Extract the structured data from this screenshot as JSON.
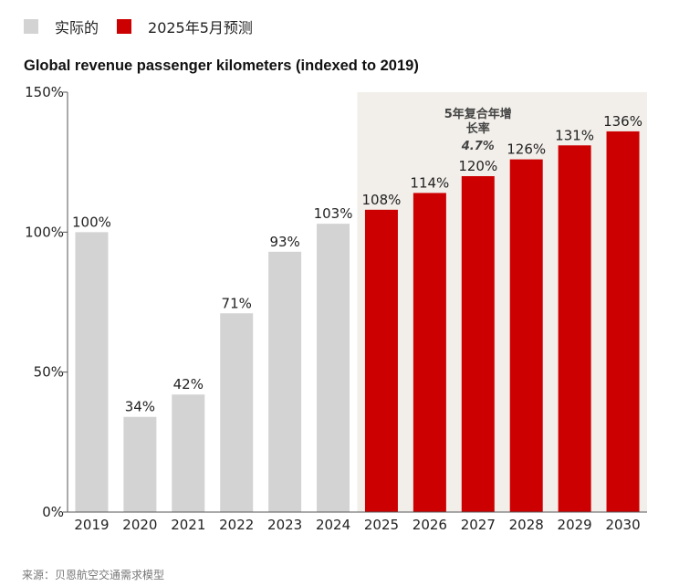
{
  "legend": {
    "actual_label": "实际的",
    "forecast_label": "2025年5月预测",
    "actual_color": "#d3d3d3",
    "forecast_color": "#cc0000"
  },
  "source": "来源：贝恩航空交通需求模型",
  "chart_data": {
    "type": "bar",
    "title": "Global revenue passenger kilometers (indexed to 2019)",
    "categories": [
      "2019",
      "2020",
      "2021",
      "2022",
      "2023",
      "2024",
      "2025",
      "2026",
      "2027",
      "2028",
      "2029",
      "2030"
    ],
    "values": [
      100,
      34,
      42,
      71,
      93,
      103,
      108,
      114,
      120,
      126,
      131,
      136
    ],
    "value_labels": [
      "100%",
      "34%",
      "42%",
      "71%",
      "93%",
      "103%",
      "108%",
      "114%",
      "120%",
      "126%",
      "131%",
      "136%"
    ],
    "series_status": [
      "actual",
      "actual",
      "actual",
      "actual",
      "actual",
      "actual",
      "forecast",
      "forecast",
      "forecast",
      "forecast",
      "forecast",
      "forecast"
    ],
    "ylim": [
      0,
      150
    ],
    "yticks": [
      0,
      50,
      100,
      150
    ],
    "ytick_labels": [
      "0%",
      "50%",
      "100%",
      "150%"
    ],
    "shaded_region": {
      "from": "2025",
      "to": "2030",
      "color": "#f2efea"
    },
    "annotation": {
      "lines": [
        "5年复合年增",
        "长率"
      ],
      "value": "4.7%"
    },
    "grid": false,
    "legend_position": "top-left"
  }
}
